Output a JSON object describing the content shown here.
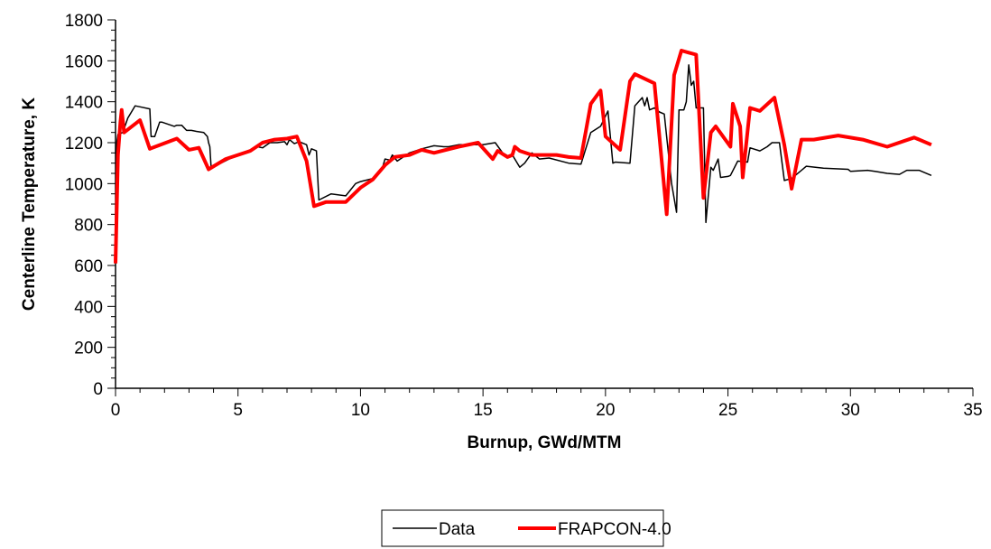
{
  "chart_data": {
    "type": "line",
    "title": "",
    "xlabel": "Burnup, GWd/MTM",
    "ylabel": "Centerline Temperature, K",
    "xlim": [
      0,
      35
    ],
    "ylim": [
      0,
      1800
    ],
    "xticks": [
      "0",
      "5",
      "10",
      "15",
      "20",
      "25",
      "30",
      "35"
    ],
    "yticks": [
      "0",
      "200",
      "400",
      "600",
      "800",
      "1000",
      "1200",
      "1400",
      "1600",
      "1800"
    ],
    "grid": false,
    "legend_position": "bottom",
    "series": [
      {
        "name": "Data",
        "color": "#000000",
        "x": [
          0.0,
          0.05,
          0.1,
          0.3,
          0.5,
          0.8,
          1.0,
          1.4,
          1.45,
          1.6,
          1.8,
          1.9,
          2.4,
          2.5,
          2.7,
          2.9,
          3.1,
          3.3,
          3.6,
          3.75,
          3.8,
          3.85,
          3.9,
          4.3,
          4.8,
          5.2,
          5.6,
          5.8,
          6.0,
          6.3,
          6.6,
          6.9,
          7.0,
          7.1,
          7.3,
          7.5,
          7.8,
          7.9,
          8.0,
          8.1,
          8.2,
          8.3,
          8.8,
          9.4,
          9.8,
          10.0,
          10.5,
          10.9,
          11.0,
          11.2,
          11.3,
          11.5,
          12.0,
          12.5,
          13.0,
          13.4,
          13.6,
          14.0,
          14.5,
          15.0,
          15.5,
          15.8,
          16.1,
          16.2,
          16.5,
          16.7,
          17.0,
          17.3,
          17.7,
          18.5,
          19.0,
          19.4,
          19.8,
          20.1,
          20.3,
          20.4,
          21.0,
          21.2,
          21.5,
          21.6,
          21.7,
          21.8,
          22.0,
          22.2,
          22.4,
          22.7,
          22.9,
          23.0,
          23.2,
          23.3,
          23.4,
          23.5,
          23.6,
          23.7,
          24.0,
          24.1,
          24.3,
          24.4,
          24.6,
          24.7,
          25.0,
          25.1,
          25.4,
          25.8,
          25.9,
          26.3,
          26.6,
          26.8,
          27.1,
          27.3,
          27.6,
          28.2,
          28.9,
          29.9,
          30.0,
          30.7,
          31.0,
          31.5,
          32.0,
          32.3,
          32.8,
          33.3
        ],
        "values": [
          760,
          1200,
          1240,
          1250,
          1320,
          1380,
          1375,
          1365,
          1230,
          1230,
          1300,
          1300,
          1280,
          1285,
          1285,
          1260,
          1260,
          1255,
          1250,
          1230,
          1200,
          1180,
          1080,
          1100,
          1130,
          1150,
          1170,
          1180,
          1175,
          1200,
          1200,
          1205,
          1190,
          1215,
          1195,
          1205,
          1190,
          1140,
          1170,
          1165,
          1160,
          920,
          950,
          940,
          1000,
          1010,
          1025,
          1080,
          1120,
          1115,
          1140,
          1110,
          1150,
          1170,
          1185,
          1180,
          1180,
          1190,
          1190,
          1190,
          1200,
          1150,
          1130,
          1140,
          1080,
          1100,
          1150,
          1120,
          1125,
          1100,
          1095,
          1250,
          1280,
          1355,
          1100,
          1105,
          1100,
          1380,
          1420,
          1380,
          1420,
          1360,
          1370,
          1350,
          1340,
          1000,
          860,
          1360,
          1360,
          1400,
          1580,
          1480,
          1500,
          1370,
          1370,
          810,
          1080,
          1065,
          1120,
          1030,
          1035,
          1040,
          1110,
          1105,
          1175,
          1160,
          1180,
          1200,
          1200,
          1015,
          1025,
          1085,
          1075,
          1070,
          1060,
          1065,
          1060,
          1050,
          1045,
          1065,
          1065,
          1040
        ]
      },
      {
        "name": "FRAPCON-4.0",
        "color": "#ff0000",
        "x": [
          0.0,
          0.1,
          0.2,
          0.25,
          0.35,
          1.0,
          1.4,
          2.5,
          3.0,
          3.4,
          3.8,
          4.5,
          5.5,
          6.0,
          6.5,
          7.0,
          7.4,
          7.8,
          8.1,
          8.6,
          9.0,
          9.4,
          10.0,
          10.5,
          11.0,
          11.4,
          12.0,
          12.5,
          13.0,
          14.0,
          14.8,
          15.4,
          15.6,
          16.0,
          16.2,
          16.3,
          16.5,
          17.0,
          18.0,
          18.5,
          19.0,
          19.4,
          19.8,
          20.0,
          20.6,
          21.0,
          21.2,
          22.0,
          22.5,
          22.8,
          23.1,
          23.4,
          23.7,
          24.0,
          24.3,
          24.5,
          25.1,
          25.2,
          25.5,
          25.6,
          25.9,
          26.3,
          26.9,
          27.3,
          27.6,
          28.0,
          28.5,
          29.5,
          30.5,
          31.5,
          32.6,
          33.3
        ],
        "values": [
          610,
          1140,
          1300,
          1360,
          1250,
          1310,
          1170,
          1220,
          1165,
          1175,
          1070,
          1120,
          1160,
          1200,
          1215,
          1220,
          1230,
          1110,
          890,
          910,
          910,
          910,
          980,
          1020,
          1090,
          1130,
          1140,
          1165,
          1150,
          1180,
          1200,
          1120,
          1160,
          1130,
          1140,
          1180,
          1160,
          1140,
          1140,
          1130,
          1125,
          1390,
          1455,
          1230,
          1165,
          1500,
          1535,
          1490,
          850,
          1530,
          1650,
          1640,
          1630,
          930,
          1250,
          1280,
          1180,
          1390,
          1280,
          1030,
          1370,
          1355,
          1420,
          1190,
          975,
          1215,
          1215,
          1235,
          1215,
          1180,
          1225,
          1190
        ]
      }
    ]
  }
}
